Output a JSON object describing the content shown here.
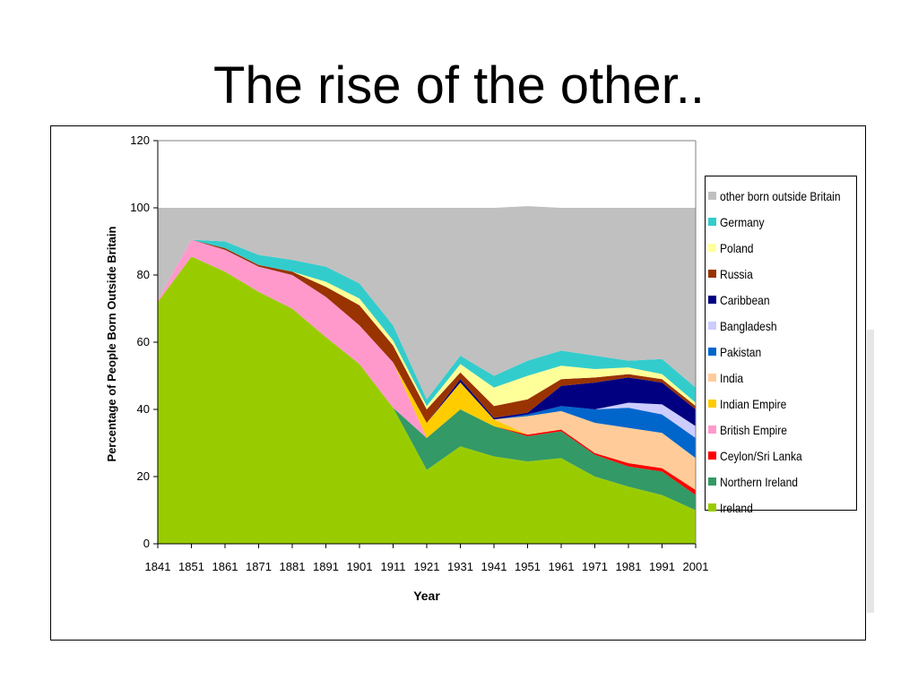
{
  "slide": {
    "title": "The rise of the other.."
  },
  "chart_data": {
    "type": "area",
    "stacked": true,
    "xlabel": "Year",
    "ylabel": "Percentage of People Born Outside Britain",
    "ylim": [
      0,
      120
    ],
    "yticks": [
      0,
      20,
      40,
      60,
      80,
      100,
      120
    ],
    "x": [
      "1841",
      "1851",
      "1861",
      "1871",
      "1881",
      "1891",
      "1901",
      "1911",
      "1921",
      "1931",
      "1941",
      "1951",
      "1961",
      "1971",
      "1981",
      "1991",
      "2001"
    ],
    "legend_position": "right",
    "series": [
      {
        "name": "Ireland",
        "color": "#99CC00",
        "values": [
          72,
          85.5,
          81,
          75,
          70,
          61.5,
          53.5,
          40.5,
          22,
          29,
          26,
          24.5,
          25.5,
          20,
          17,
          14.5,
          10
        ]
      },
      {
        "name": "Northern Ireland",
        "color": "#339966",
        "values": [
          0,
          0,
          0,
          0,
          0,
          0,
          0,
          0,
          9.5,
          11,
          9,
          7.5,
          8,
          6.5,
          6,
          7,
          4.5
        ]
      },
      {
        "name": "Ceylon/Sri Lanka",
        "color": "#FF0000",
        "values": [
          0,
          0,
          0,
          0,
          0,
          0,
          0,
          0,
          0,
          0,
          0,
          0.5,
          0.5,
          0.5,
          1,
          1,
          1.5
        ]
      },
      {
        "name": "British Empire",
        "color": "#FF99CC",
        "values": [
          0.5,
          5,
          6.5,
          7.5,
          10,
          12,
          11.5,
          13.5,
          0,
          0,
          0,
          0,
          0,
          0,
          0,
          0,
          0
        ]
      },
      {
        "name": "Indian Empire",
        "color": "#FFCC00",
        "values": [
          0,
          0,
          0,
          0,
          0,
          0,
          0,
          0,
          4.5,
          8,
          2,
          0,
          0,
          0,
          0,
          0,
          0
        ]
      },
      {
        "name": "India",
        "color": "#FFCC99",
        "values": [
          0,
          0,
          0,
          0,
          0,
          0,
          0,
          0,
          0,
          0,
          0,
          5.5,
          5.5,
          9,
          10.5,
          10.5,
          9.5
        ]
      },
      {
        "name": "Pakistan",
        "color": "#0066CC",
        "values": [
          0,
          0,
          0,
          0,
          0,
          0,
          0,
          0,
          0,
          0,
          0,
          0.5,
          1.5,
          4,
          6,
          5.5,
          6
        ]
      },
      {
        "name": "Bangladesh",
        "color": "#CCCCFF",
        "values": [
          0,
          0,
          0,
          0,
          0,
          0,
          0,
          0,
          0,
          0,
          0,
          0,
          0,
          0,
          1.5,
          3,
          3.5
        ]
      },
      {
        "name": "Caribbean",
        "color": "#000080",
        "values": [
          0,
          0,
          0,
          0,
          0,
          0,
          0,
          0,
          0,
          1,
          0.5,
          0.5,
          6,
          8,
          7.5,
          6.5,
          5
        ]
      },
      {
        "name": "Russia",
        "color": "#993300",
        "values": [
          0,
          0,
          0.5,
          0.5,
          1,
          3,
          6,
          5,
          4,
          2,
          3.5,
          4,
          2,
          1.5,
          1,
          1,
          1
        ]
      },
      {
        "name": "Poland",
        "color": "#FFFF99",
        "values": [
          0,
          0,
          0,
          0,
          0,
          1.5,
          2,
          1.5,
          1,
          2.5,
          5.5,
          7,
          4,
          2.5,
          2,
          1.5,
          1
        ]
      },
      {
        "name": "Germany",
        "color": "#33CCCC",
        "values": [
          0,
          0,
          2,
          3,
          3.5,
          4.5,
          4.5,
          4.5,
          2,
          2.5,
          3.5,
          4.5,
          4.5,
          4,
          2,
          4.5,
          4.5
        ]
      },
      {
        "name": "other born outside Britain",
        "color": "#C0C0C0",
        "values": [
          27.5,
          9.5,
          10,
          14,
          15.5,
          17.5,
          22.5,
          35,
          57,
          44,
          50,
          46,
          42.5,
          44,
          45.5,
          45,
          53.5
        ]
      }
    ]
  }
}
